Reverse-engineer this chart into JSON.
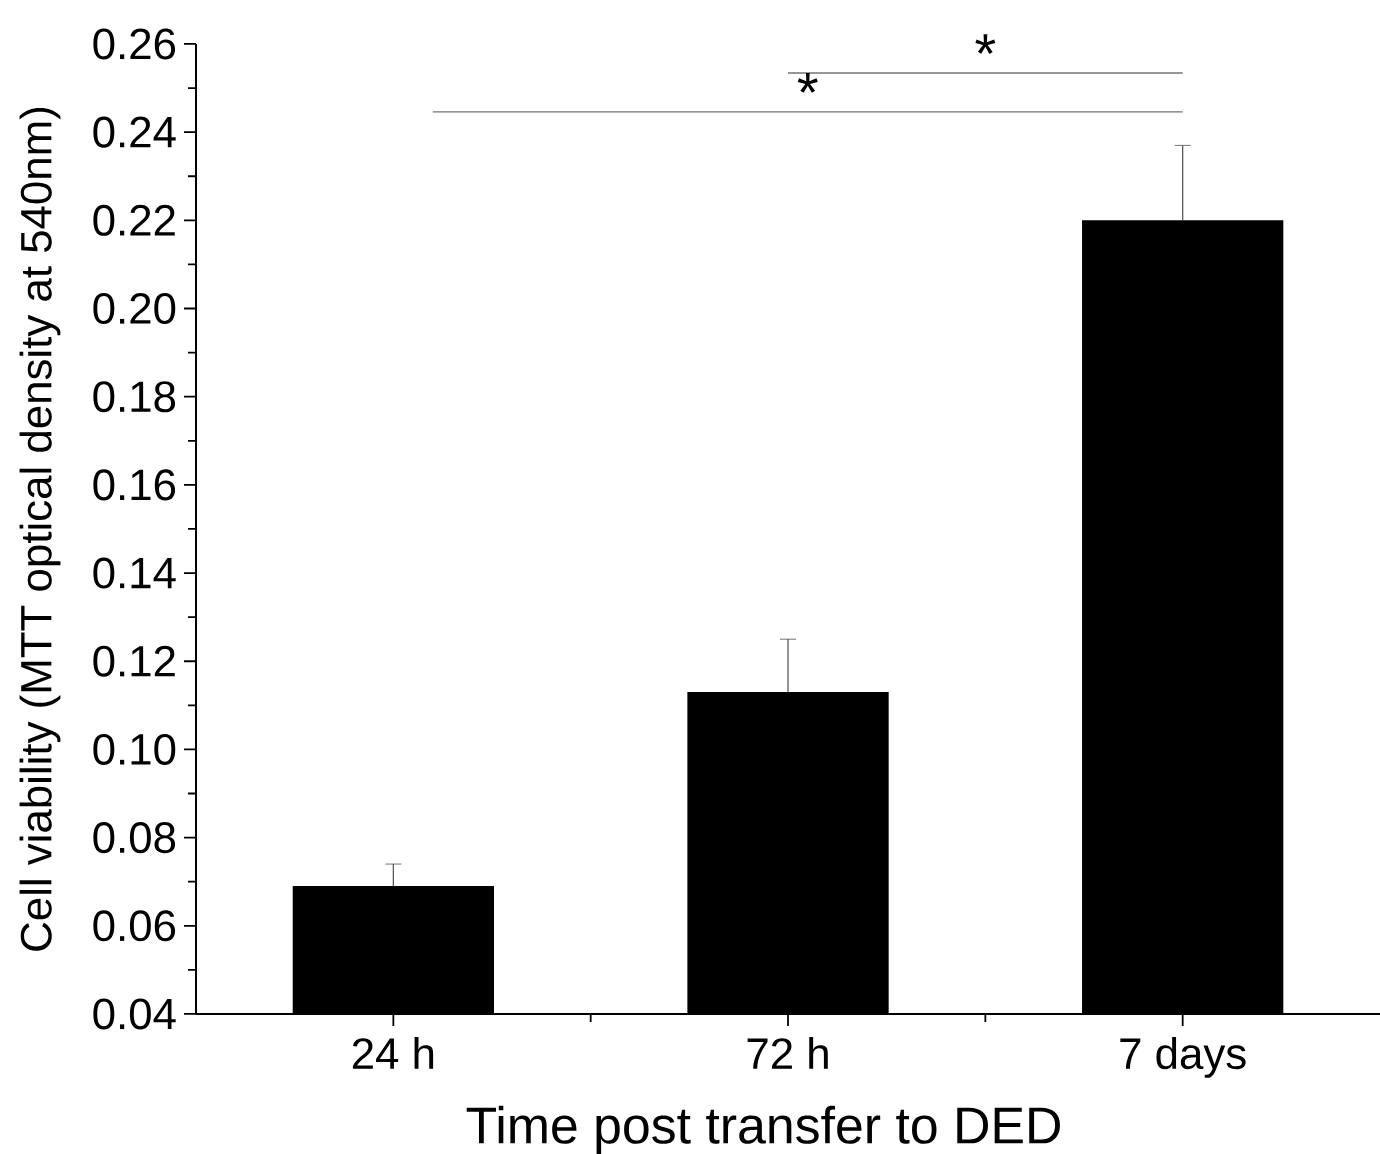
{
  "chart_data": {
    "type": "bar",
    "xlabel": "Time post transfer to DED",
    "ylabel": "Cell viability (MTT optical density at 540nm)",
    "categories": [
      "24 h",
      "72 h",
      "7 days"
    ],
    "values": [
      0.069,
      0.113,
      0.22
    ],
    "errors": [
      0.005,
      0.012,
      0.017
    ],
    "color": "#000000",
    "ylim": [
      0.04,
      0.26
    ],
    "yticks": [
      {
        "value": 0.04,
        "label": "0.04"
      },
      {
        "value": 0.06,
        "label": "0.06"
      },
      {
        "value": 0.08,
        "label": "0.08"
      },
      {
        "value": 0.1,
        "label": "0.10"
      },
      {
        "value": 0.12,
        "label": "0.12"
      },
      {
        "value": 0.14,
        "label": "0.14"
      },
      {
        "value": 0.16,
        "label": "0.16"
      },
      {
        "value": 0.18,
        "label": "0.18"
      },
      {
        "value": 0.2,
        "label": "0.20"
      },
      {
        "value": 0.22,
        "label": "0.22"
      },
      {
        "value": 0.24,
        "label": "0.24"
      },
      {
        "value": 0.26,
        "label": "0.26"
      }
    ],
    "annotations": [
      "*",
      "*"
    ],
    "grid": false
  }
}
